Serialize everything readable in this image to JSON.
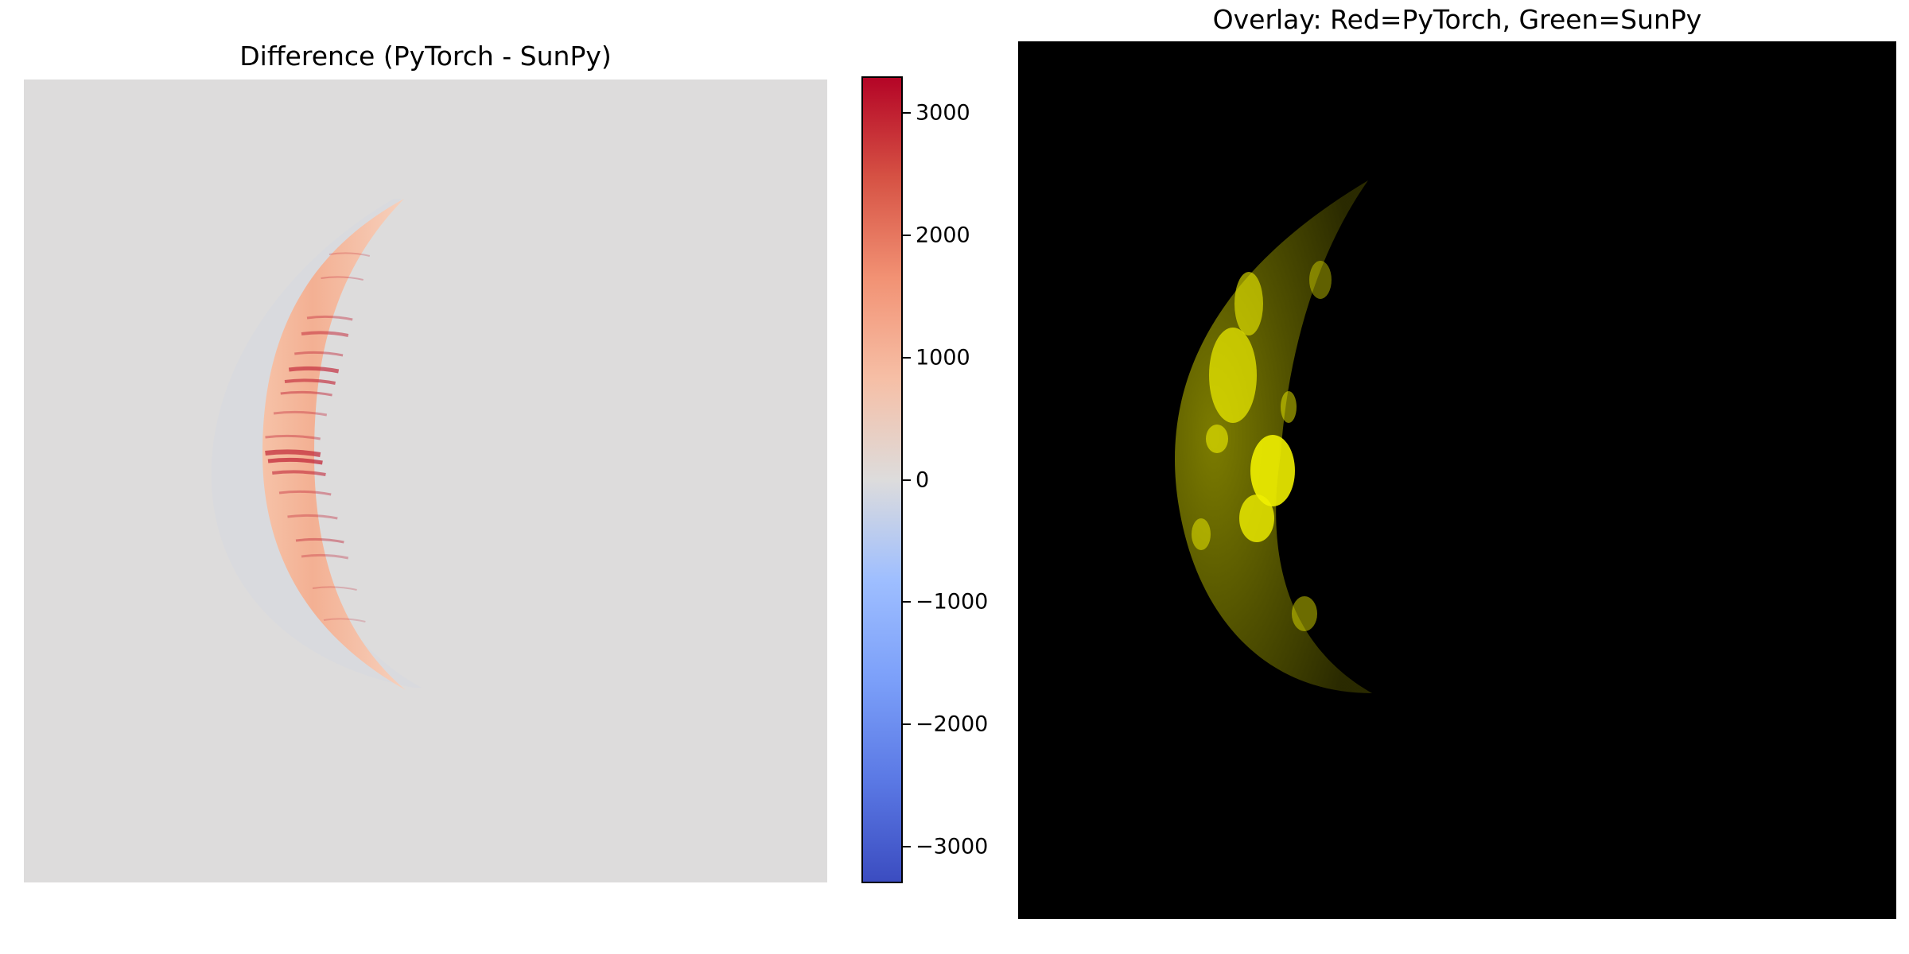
{
  "chart_data": [
    {
      "type": "heatmap",
      "title": "Difference (PyTorch - SunPy)",
      "axes_visible": false,
      "colormap": "coolwarm",
      "background_value": 0,
      "clim": [
        -3300,
        3300
      ],
      "description_values": {
        "outer_limb_band_value_range": [
          0,
          3300
        ],
        "strong_streak_peak_value": 3300
      },
      "colorbar": {
        "ticks": [
          3000,
          2000,
          1000,
          0,
          -1000,
          -2000,
          -3000
        ],
        "tick_labels": [
          "3000",
          "2000",
          "1000",
          "0",
          "−1000",
          "−2000",
          "−3000"
        ]
      }
    },
    {
      "type": "heatmap",
      "title": "Overlay: Red=PyTorch, Green=SunPy",
      "axes_visible": false,
      "background_color": "#000000",
      "feature_color": "#e6e600"
    }
  ],
  "colors": {
    "neutral": "#dddcdc",
    "warm_max": "#b40426",
    "cool_max": "#3b4cc0",
    "overlay_bg": "#000000",
    "overlay_feature": "#ffff00"
  }
}
